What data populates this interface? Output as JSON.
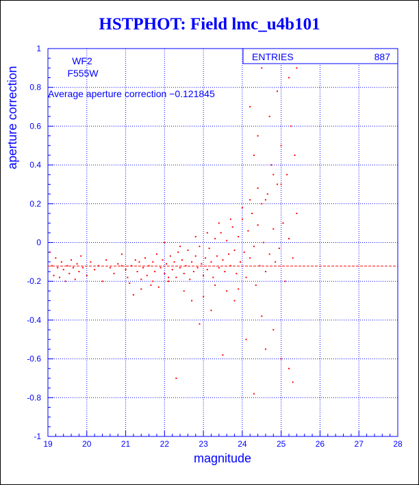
{
  "title": "HSTPHOT: Field lmc_u4b101",
  "colors": {
    "axis": "#0000ff",
    "points": "#ff0000",
    "grid": "#0000ff",
    "title": "#0000ff"
  },
  "stats": {
    "label": "ENTRIES",
    "value": "887"
  },
  "info": {
    "camera": "WF2",
    "filter": "F555W",
    "average_text": "Average aperture correction −0.121845"
  },
  "chart_data": {
    "type": "scatter",
    "title": "HSTPHOT: Field lmc_u4b101",
    "xlabel": "magnitude",
    "ylabel": "aperture correction",
    "xlim": [
      19,
      28
    ],
    "ylim": [
      -1,
      1
    ],
    "xticks": [
      "19",
      "20",
      "21",
      "22",
      "23",
      "24",
      "25",
      "26",
      "27",
      "28"
    ],
    "yticks": [
      "-1",
      "-0.8",
      "-0.6",
      "-0.4",
      "-0.2",
      "0",
      "0.2",
      "0.4",
      "0.6",
      "0.8",
      "1"
    ],
    "grid": true,
    "reference_line": {
      "y": -0.121845,
      "style": "dashed"
    },
    "series": [
      {
        "points": [
          [
            19.05,
            -0.05
          ],
          [
            19.1,
            -0.12
          ],
          [
            19.15,
            -0.17
          ],
          [
            19.2,
            -0.08
          ],
          [
            19.25,
            -0.13
          ],
          [
            19.3,
            -0.18
          ],
          [
            19.35,
            -0.1
          ],
          [
            19.4,
            -0.14
          ],
          [
            19.45,
            -0.2
          ],
          [
            19.5,
            -0.12
          ],
          [
            19.55,
            -0.16
          ],
          [
            19.6,
            -0.09
          ],
          [
            19.65,
            -0.13
          ],
          [
            19.7,
            -0.19
          ],
          [
            19.75,
            -0.11
          ],
          [
            19.8,
            -0.15
          ],
          [
            19.85,
            -0.07
          ],
          [
            19.9,
            -0.13
          ],
          [
            20.0,
            -0.17
          ],
          [
            20.1,
            -0.1
          ],
          [
            20.2,
            -0.14
          ],
          [
            20.3,
            -0.12
          ],
          [
            20.4,
            -0.2
          ],
          [
            20.5,
            -0.09
          ],
          [
            20.6,
            -0.13
          ],
          [
            20.7,
            -0.16
          ],
          [
            20.8,
            -0.11
          ],
          [
            20.9,
            -0.06
          ],
          [
            21.0,
            -0.14
          ],
          [
            21.05,
            -0.18
          ],
          [
            21.1,
            -0.21
          ],
          [
            21.15,
            -0.12
          ],
          [
            21.2,
            -0.27
          ],
          [
            21.25,
            -0.09
          ],
          [
            21.3,
            -0.15
          ],
          [
            21.35,
            -0.1
          ],
          [
            21.4,
            -0.19
          ],
          [
            21.45,
            -0.13
          ],
          [
            21.5,
            -0.08
          ],
          [
            21.55,
            -0.17
          ],
          [
            21.6,
            -0.12
          ],
          [
            21.65,
            -0.22
          ],
          [
            21.7,
            -0.1
          ],
          [
            21.75,
            -0.15
          ],
          [
            21.8,
            -0.06
          ],
          [
            21.85,
            -0.23
          ],
          [
            21.9,
            -0.13
          ],
          [
            21.95,
            -0.09
          ],
          [
            22.0,
            -0.16
          ],
          [
            22.05,
            -0.11
          ],
          [
            22.1,
            -0.2
          ],
          [
            22.15,
            -0.07
          ],
          [
            22.2,
            -0.14
          ],
          [
            22.25,
            -0.1
          ],
          [
            22.3,
            -0.18
          ],
          [
            22.35,
            -0.05
          ],
          [
            22.4,
            -0.13
          ],
          [
            22.45,
            -0.09
          ],
          [
            22.5,
            -0.16
          ],
          [
            22.55,
            -0.12
          ],
          [
            22.6,
            -0.04
          ],
          [
            22.65,
            -0.19
          ],
          [
            22.7,
            -0.1
          ],
          [
            22.75,
            -0.15
          ],
          [
            22.8,
            -0.07
          ],
          [
            22.85,
            -0.13
          ],
          [
            22.9,
            -0.02
          ],
          [
            22.95,
            -0.11
          ],
          [
            23.0,
            -0.17
          ],
          [
            23.05,
            -0.08
          ],
          [
            23.1,
            -0.14
          ],
          [
            23.15,
            -0.03
          ],
          [
            23.2,
            -0.1
          ],
          [
            23.25,
            -0.18
          ],
          [
            23.3,
            0.02
          ],
          [
            23.35,
            -0.07
          ],
          [
            23.4,
            -0.13
          ],
          [
            23.45,
            0.05
          ],
          [
            23.5,
            -0.09
          ],
          [
            23.55,
            -0.15
          ],
          [
            23.6,
            0.01
          ],
          [
            23.65,
            -0.06
          ],
          [
            23.7,
            -0.12
          ],
          [
            23.75,
            0.08
          ],
          [
            23.8,
            -0.04
          ],
          [
            23.85,
            -0.16
          ],
          [
            23.9,
            0.03
          ],
          [
            23.95,
            -0.1
          ],
          [
            24.0,
            0.12
          ],
          [
            24.05,
            -0.05
          ],
          [
            24.1,
            -0.18
          ],
          [
            24.15,
            0.06
          ],
          [
            24.2,
            -0.08
          ],
          [
            24.25,
            0.15
          ],
          [
            24.3,
            -0.02
          ],
          [
            24.35,
            -0.22
          ],
          [
            24.4,
            0.09
          ],
          [
            24.45,
            -0.12
          ],
          [
            24.5,
            0.2
          ],
          [
            24.55,
            0.0
          ],
          [
            24.6,
            -0.15
          ],
          [
            24.65,
            0.25
          ],
          [
            24.7,
            -0.06
          ],
          [
            24.75,
            0.4
          ],
          [
            24.8,
            0.07
          ],
          [
            24.85,
            -0.1
          ],
          [
            24.9,
            0.3
          ],
          [
            24.95,
            -0.03
          ],
          [
            25.0,
            0.5
          ],
          [
            25.05,
            0.1
          ],
          [
            25.1,
            -0.2
          ],
          [
            25.15,
            0.35
          ],
          [
            25.2,
            0.02
          ],
          [
            25.25,
            0.6
          ],
          [
            25.3,
            -0.08
          ],
          [
            25.35,
            0.45
          ],
          [
            25.4,
            0.15
          ],
          [
            22.3,
            -0.7
          ],
          [
            24.3,
            -0.78
          ],
          [
            23.5,
            -0.58
          ],
          [
            22.9,
            -0.42
          ],
          [
            23.2,
            -0.35
          ],
          [
            24.1,
            -0.5
          ],
          [
            24.6,
            -0.55
          ],
          [
            25.0,
            -0.6
          ],
          [
            25.3,
            -0.72
          ],
          [
            25.2,
            -0.65
          ],
          [
            24.8,
            -0.45
          ],
          [
            24.5,
            -0.38
          ],
          [
            23.8,
            -0.3
          ],
          [
            24.2,
            0.7
          ],
          [
            24.4,
            0.55
          ],
          [
            24.7,
            0.65
          ],
          [
            24.9,
            0.78
          ],
          [
            25.2,
            0.85
          ],
          [
            25.4,
            0.9
          ],
          [
            24.5,
            0.9
          ],
          [
            25.0,
            0.3
          ],
          [
            24.3,
            0.45
          ],
          [
            24.6,
            0.22
          ],
          [
            22.5,
            -0.25
          ],
          [
            22.7,
            -0.3
          ],
          [
            23.0,
            -0.28
          ],
          [
            23.3,
            -0.22
          ],
          [
            23.6,
            -0.25
          ],
          [
            23.9,
            -0.24
          ],
          [
            22.1,
            -0.18
          ],
          [
            21.7,
            -0.2
          ],
          [
            21.4,
            -0.24
          ],
          [
            20.9,
            -0.12
          ],
          [
            22.0,
            0.0
          ],
          [
            22.4,
            -0.02
          ],
          [
            22.8,
            0.03
          ],
          [
            23.1,
            0.05
          ],
          [
            23.4,
            0.1
          ],
          [
            23.7,
            0.12
          ],
          [
            24.0,
            0.18
          ],
          [
            24.2,
            0.22
          ],
          [
            24.4,
            0.28
          ],
          [
            24.8,
            0.35
          ]
        ]
      }
    ]
  }
}
